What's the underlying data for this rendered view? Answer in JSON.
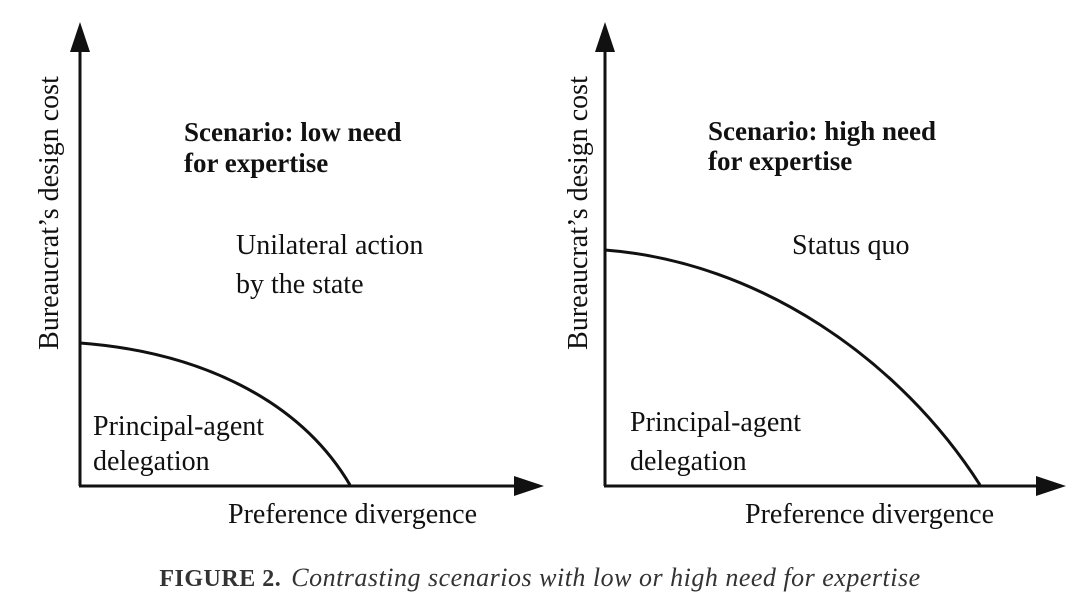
{
  "panels": [
    {
      "scenario_line1": "Scenario: low need",
      "scenario_line2": "for expertise",
      "y_axis_label": "Bureaucrat’s design cost",
      "x_axis_label": "Preference divergence",
      "upper_region_line1": "Unilateral action",
      "upper_region_line2": "by the state",
      "lower_region_line1": "Principal-agent",
      "lower_region_line2": "delegation"
    },
    {
      "scenario_line1": "Scenario: high need",
      "scenario_line2": "for expertise",
      "y_axis_label": "Bureaucrat’s design cost",
      "x_axis_label": "Preference divergence",
      "upper_region_line1": "Status quo",
      "lower_region_line1": "Principal-agent",
      "lower_region_line2": "delegation"
    }
  ],
  "caption": {
    "label": "FIGURE 2.",
    "text": "Contrasting scenarios with low or high need for expertise"
  }
}
